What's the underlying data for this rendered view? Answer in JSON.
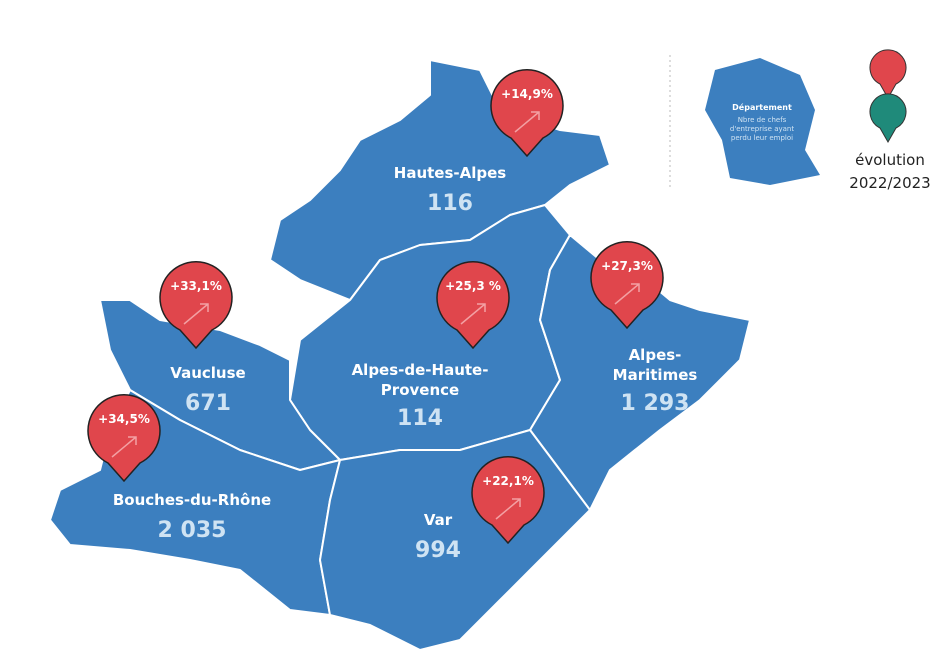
{
  "departments": [
    {
      "name": "Hautes-Alpes",
      "count": "116",
      "evolution": "+14,9%"
    },
    {
      "name": "Alpes-de-Haute-Provence",
      "count": "114",
      "evolution": "+25,3 %"
    },
    {
      "name": "Alpes-Maritimes",
      "count": "1 293",
      "evolution": "+27,3%"
    },
    {
      "name": "Vaucluse",
      "count": "671",
      "evolution": "+33,1%"
    },
    {
      "name": "Bouches-du-Rhône",
      "count": "2 035",
      "evolution": "+34,5%"
    },
    {
      "name": "Var",
      "count": "994",
      "evolution": "+22,1%"
    }
  ],
  "legend": {
    "title": "Département",
    "description": "Nbre de chefs d'entreprise ayant perdu leur emploi",
    "evolution": "évolution",
    "period": "2022/2023"
  }
}
